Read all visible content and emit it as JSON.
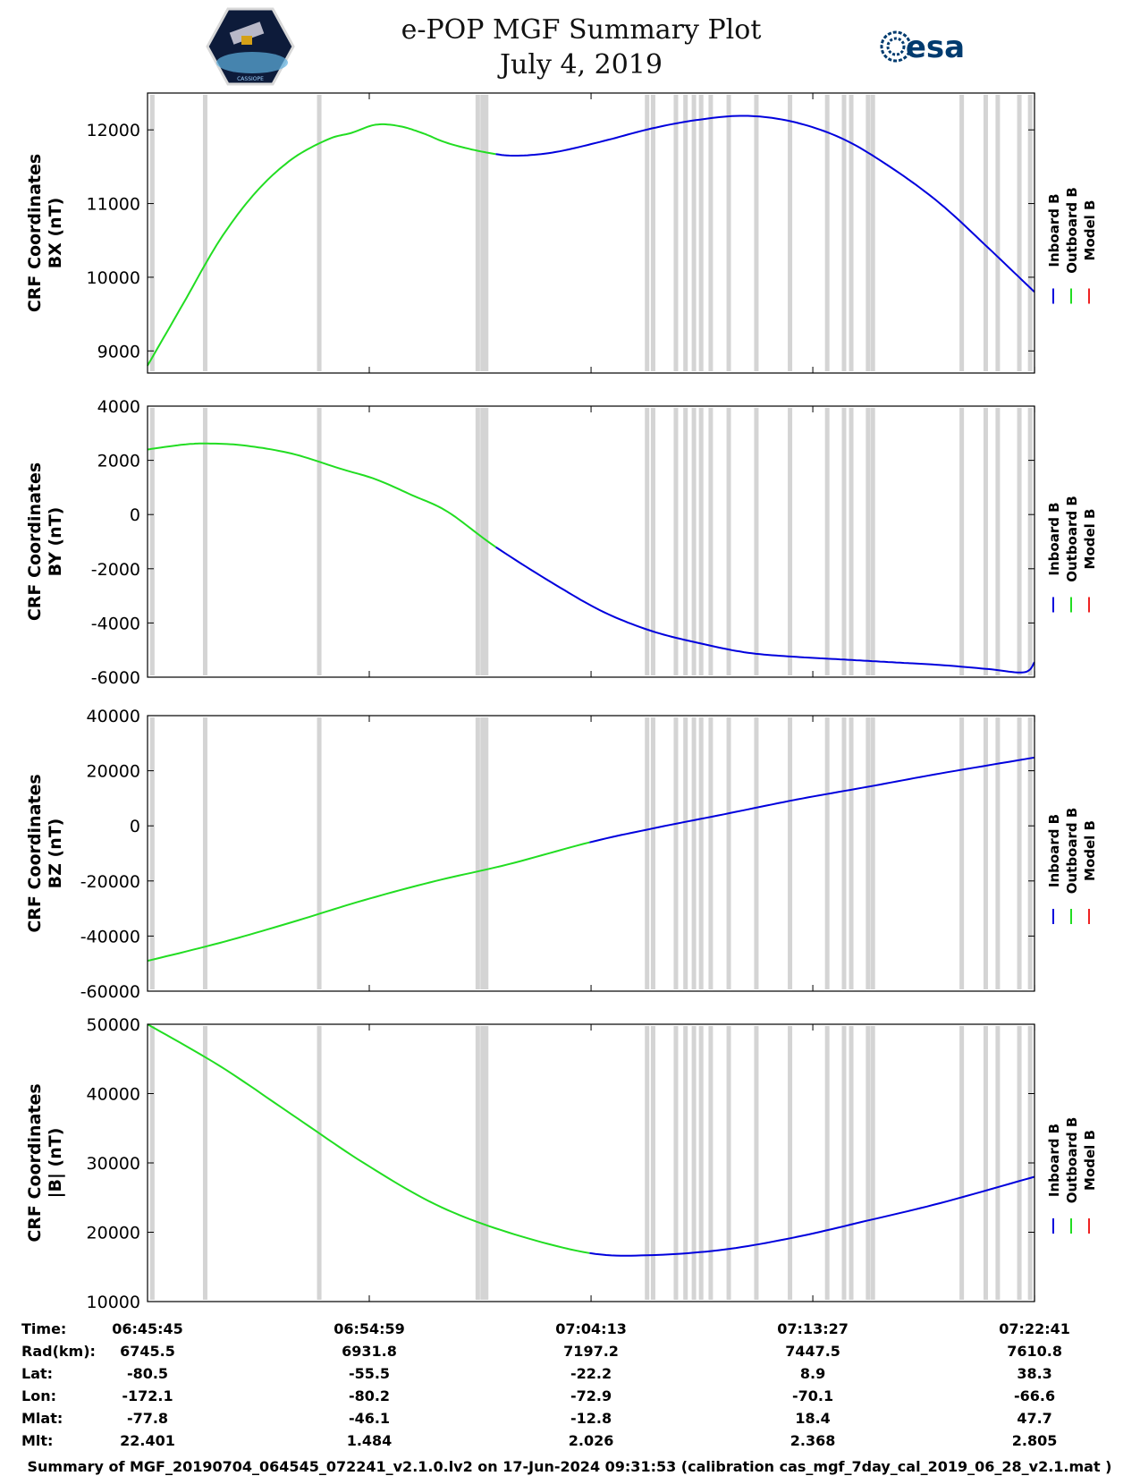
{
  "header": {
    "title": "e-POP MGF Summary Plot",
    "date": "July 4, 2019",
    "esa_logo_text": "esa",
    "cassiope_logo_text": "CASSIOPE"
  },
  "legend": {
    "entries": [
      "Inboard B",
      "Outboard B",
      "Model B"
    ],
    "colors": [
      "#0000dd",
      "#22dd22",
      "#ee2222"
    ]
  },
  "footer": "Summary of MGF_20190704_064545_072241_v2.1.0.lv2 on 17-Jun-2024 09:31:53 (calibration cas_mgf_7day_cal_2019_06_28_v2.1.mat )",
  "ephemeris": {
    "labels": [
      "Time:",
      "Rad(km):",
      "Lat:",
      "Lon:",
      "Mlat:",
      "Mlt:"
    ],
    "columns": [
      [
        "06:45:45",
        "6745.5",
        "-80.5",
        "-172.1",
        "-77.8",
        "22.401"
      ],
      [
        "06:54:59",
        "6931.8",
        "-55.5",
        "-80.2",
        "-46.1",
        "1.484"
      ],
      [
        "07:04:13",
        "7197.2",
        "-22.2",
        "-72.9",
        "-12.8",
        "2.026"
      ],
      [
        "07:13:27",
        "7447.5",
        "8.9",
        "-70.1",
        "18.4",
        "2.368"
      ],
      [
        "07:22:41",
        "7610.8",
        "38.3",
        "-66.6",
        "47.7",
        "2.805"
      ]
    ]
  },
  "chart_data": {
    "type": "line",
    "x_unit": "minutes since 06:45:45",
    "x_range": [
      0,
      36.93
    ],
    "x_ticks": [
      0,
      9.233,
      18.467,
      27.7,
      36.933
    ],
    "switch_time": 18.467,
    "gaps": [
      0.2,
      2.4,
      7.15,
      13.75,
      13.95,
      14.1,
      20.8,
      21.05,
      22.0,
      22.4,
      22.75,
      23.05,
      23.45,
      24.2,
      25.35,
      26.75,
      28.3,
      29.0,
      29.3,
      30.0,
      30.2,
      33.9,
      34.9,
      35.4,
      36.3,
      36.75
    ],
    "panels": [
      {
        "line1": "CRF Coordinates",
        "line2": "BX (nT)",
        "ylim": [
          8700,
          12500
        ],
        "yticks": [
          9000,
          10000,
          11000,
          12000
        ],
        "switch_time": 14.5,
        "points": [
          [
            0,
            8800
          ],
          [
            1.5,
            9650
          ],
          [
            3,
            10500
          ],
          [
            4.5,
            11150
          ],
          [
            6,
            11600
          ],
          [
            7.5,
            11870
          ],
          [
            8.5,
            11960
          ],
          [
            9.5,
            12070
          ],
          [
            10.5,
            12050
          ],
          [
            11.5,
            11950
          ],
          [
            12.5,
            11820
          ],
          [
            14,
            11700
          ],
          [
            15.3,
            11650
          ],
          [
            17,
            11700
          ],
          [
            19,
            11850
          ],
          [
            21,
            12020
          ],
          [
            23,
            12140
          ],
          [
            25,
            12190
          ],
          [
            27,
            12100
          ],
          [
            29,
            11870
          ],
          [
            31,
            11480
          ],
          [
            33,
            11000
          ],
          [
            35,
            10400
          ],
          [
            36.93,
            9800
          ]
        ]
      },
      {
        "line1": "CRF Coordinates",
        "line2": "BY (nT)",
        "ylim": [
          -6000,
          4000
        ],
        "yticks": [
          -6000,
          -4000,
          -2000,
          0,
          2000,
          4000
        ],
        "switch_time": 14.5,
        "points": [
          [
            0,
            2400
          ],
          [
            1.5,
            2580
          ],
          [
            2.5,
            2620
          ],
          [
            4,
            2550
          ],
          [
            6,
            2250
          ],
          [
            8,
            1700
          ],
          [
            9.5,
            1300
          ],
          [
            11,
            720
          ],
          [
            12.5,
            100
          ],
          [
            14.5,
            -1200
          ],
          [
            17,
            -2600
          ],
          [
            19,
            -3600
          ],
          [
            21,
            -4300
          ],
          [
            23,
            -4750
          ],
          [
            25,
            -5100
          ],
          [
            27,
            -5250
          ],
          [
            29,
            -5350
          ],
          [
            31,
            -5450
          ],
          [
            33,
            -5550
          ],
          [
            35,
            -5700
          ],
          [
            36.5,
            -5820
          ],
          [
            36.93,
            -5450
          ]
        ]
      },
      {
        "line1": "CRF Coordinates",
        "line2": "BZ (nT)",
        "ylim": [
          -60000,
          40000
        ],
        "yticks": [
          -60000,
          -40000,
          -20000,
          0,
          20000,
          40000
        ],
        "switch_time": 18.4,
        "points": [
          [
            0,
            -49000
          ],
          [
            3,
            -42500
          ],
          [
            6,
            -35000
          ],
          [
            9,
            -27000
          ],
          [
            12,
            -20000
          ],
          [
            15,
            -14000
          ],
          [
            18.4,
            -6000
          ],
          [
            21,
            -1000
          ],
          [
            24,
            4200
          ],
          [
            27,
            9500
          ],
          [
            30,
            14200
          ],
          [
            33,
            19000
          ],
          [
            36.93,
            24800
          ]
        ]
      },
      {
        "line1": "CRF Coordinates",
        "line2": "|B| (nT)",
        "ylim": [
          10000,
          50000
        ],
        "yticks": [
          10000,
          20000,
          30000,
          40000,
          50000
        ],
        "switch_time": 18.4,
        "points": [
          [
            0,
            50000
          ],
          [
            3,
            44000
          ],
          [
            6,
            37000
          ],
          [
            9,
            30000
          ],
          [
            12,
            24000
          ],
          [
            15,
            20000
          ],
          [
            18.4,
            17000
          ],
          [
            21,
            16700
          ],
          [
            24,
            17500
          ],
          [
            27,
            19300
          ],
          [
            30,
            21700
          ],
          [
            33,
            24200
          ],
          [
            36.93,
            28000
          ]
        ]
      }
    ]
  }
}
